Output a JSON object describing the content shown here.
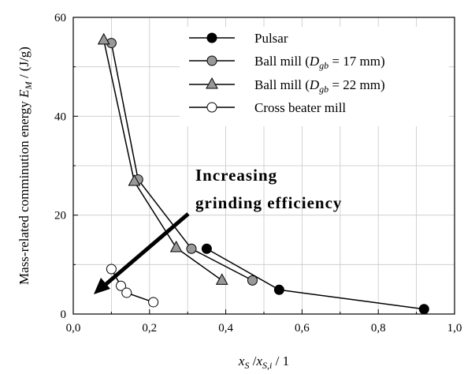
{
  "chart_data": {
    "type": "line",
    "title": "",
    "xlabel": "x_s / x_s,i / 1",
    "ylabel": "Mass-related comminution energy E_M / (J/g)",
    "xlim": [
      0,
      1.0
    ],
    "ylim": [
      0,
      60
    ],
    "xticks": [
      0,
      0.2,
      0.4,
      0.6,
      0.8,
      1.0
    ],
    "xtick_labels": [
      "0,0",
      "0,2",
      "0,4",
      "0,6",
      "0,8",
      "1,0"
    ],
    "yticks": [
      0,
      20,
      40,
      60
    ],
    "ytick_labels": [
      "0",
      "20",
      "40",
      "60"
    ],
    "grid": true,
    "legend_position": "top-right",
    "series": [
      {
        "name": "Pulsar",
        "marker": "circle",
        "fill": "#000000",
        "x": [
          0.35,
          0.54,
          0.92
        ],
        "y": [
          13.2,
          4.9,
          1.0
        ]
      },
      {
        "name": "Ball mill (D_gb = 17 mm)",
        "marker": "circle",
        "fill": "#999999",
        "x": [
          0.1,
          0.17,
          0.31,
          0.47
        ],
        "y": [
          54.8,
          27.2,
          13.2,
          6.8
        ]
      },
      {
        "name": "Ball mill (D_gb = 22 mm)",
        "marker": "triangle",
        "fill": "#999999",
        "x": [
          0.08,
          0.16,
          0.27,
          0.39
        ],
        "y": [
          55.4,
          26.8,
          13.4,
          6.8
        ]
      },
      {
        "name": "Cross beater mill",
        "marker": "circle",
        "fill": "#ffffff",
        "x": [
          0.1,
          0.125,
          0.14,
          0.21
        ],
        "y": [
          9.1,
          5.7,
          4.3,
          2.4
        ]
      }
    ],
    "annotations": [
      {
        "text_line1": "Increasing",
        "text_line2": "grinding efficiency"
      }
    ]
  },
  "labels": {
    "ylabel_main": "Mass-related comminution energy ",
    "ylabel_var": "E",
    "ylabel_sub": "M",
    "ylabel_unit": " / (J/g)",
    "xlabel_var1": "x",
    "xlabel_sub1": "S",
    "xlabel_sep": " /",
    "xlabel_var2": "x",
    "xlabel_sub2": "S,i",
    "xlabel_unit": " / 1",
    "legend_dgb_var": "D",
    "legend_dgb_sub": "gb",
    "legend_ball17_prefix": "Ball mill (",
    "legend_ball17_suffix": " = 17 mm)",
    "legend_ball22_prefix": "Ball mill (",
    "legend_ball22_suffix": " = 22 mm)"
  }
}
